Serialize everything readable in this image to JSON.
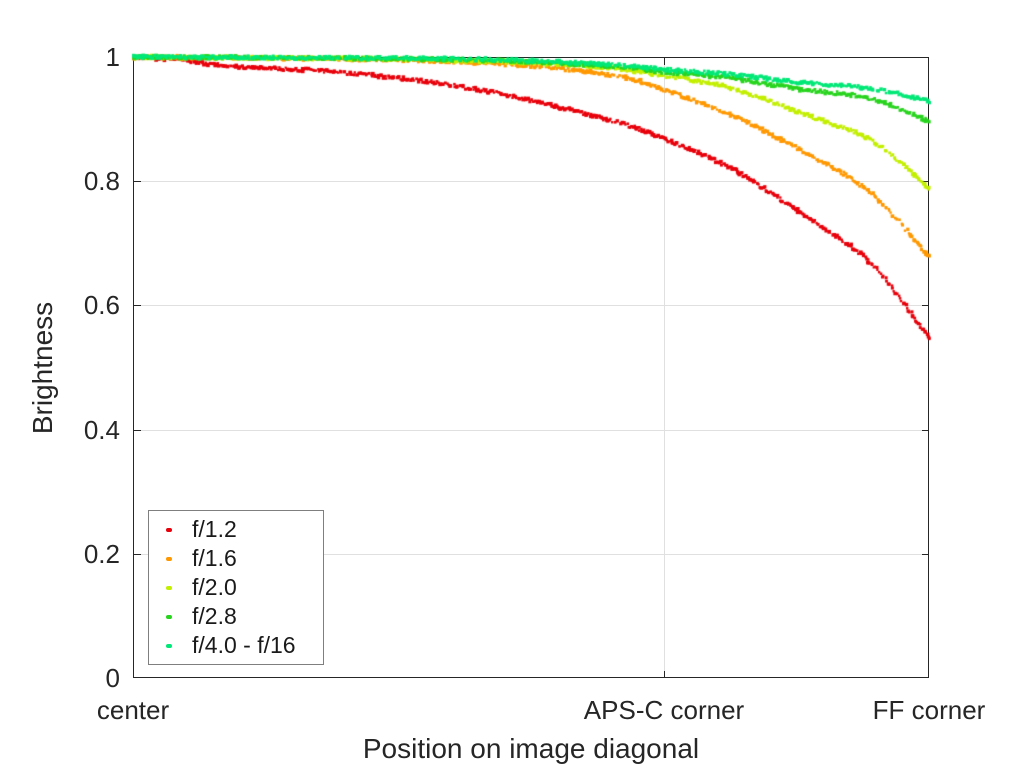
{
  "chart_data": {
    "type": "scatter",
    "title": "",
    "xlabel": "Position on image diagonal",
    "ylabel": "Brightness",
    "xlim": [
      0,
      1
    ],
    "ylim": [
      0,
      1
    ],
    "grid": {
      "on": true,
      "color": "#e0e0e0",
      "horizontal_values": [
        0.2,
        0.4,
        0.6,
        0.8
      ],
      "vertical_values": [
        0.667
      ]
    },
    "axis_color": "#262626",
    "x_ticks": [
      {
        "pos": 0,
        "label": "center"
      },
      {
        "pos": 0.667,
        "label": "APS-C corner"
      },
      {
        "pos": 1,
        "label": "FF corner"
      }
    ],
    "y_ticks": [
      {
        "pos": 0,
        "label": "0"
      },
      {
        "pos": 0.2,
        "label": "0.2"
      },
      {
        "pos": 0.4,
        "label": "0.4"
      },
      {
        "pos": 0.6,
        "label": "0.6"
      },
      {
        "pos": 0.8,
        "label": "0.8"
      },
      {
        "pos": 1,
        "label": "1"
      }
    ],
    "legend": {
      "position": "bottom-left",
      "border_color": "#7f7f7f",
      "background": "#ffffff"
    },
    "series": [
      {
        "name": "f/1.2",
        "color": "#e8000b",
        "points": [
          [
            0,
            1.0
          ],
          [
            0.06,
            0.995
          ],
          [
            0.126,
            0.985
          ],
          [
            0.273,
            0.974
          ],
          [
            0.436,
            0.947
          ],
          [
            0.6,
            0.898
          ],
          [
            0.667,
            0.868
          ],
          [
            0.751,
            0.821
          ],
          [
            0.839,
            0.749
          ],
          [
            0.927,
            0.668
          ],
          [
            1,
            0.547
          ]
        ]
      },
      {
        "name": "f/1.6",
        "color": "#ff9800",
        "points": [
          [
            0,
            1.0
          ],
          [
            0.2,
            0.998
          ],
          [
            0.436,
            0.991
          ],
          [
            0.6,
            0.971
          ],
          [
            0.667,
            0.947
          ],
          [
            0.751,
            0.907
          ],
          [
            0.839,
            0.85
          ],
          [
            0.927,
            0.781
          ],
          [
            1,
            0.678
          ]
        ]
      },
      {
        "name": "f/2.0",
        "color": "#c3ef00",
        "points": [
          [
            0,
            1.0
          ],
          [
            0.3,
            0.997
          ],
          [
            0.5,
            0.991
          ],
          [
            0.6,
            0.982
          ],
          [
            0.667,
            0.97
          ],
          [
            0.751,
            0.95
          ],
          [
            0.839,
            0.91
          ],
          [
            0.927,
            0.866
          ],
          [
            1,
            0.789
          ]
        ]
      },
      {
        "name": "f/2.8",
        "color": "#28d41e",
        "points": [
          [
            0,
            1.0
          ],
          [
            0.4,
            0.996
          ],
          [
            0.6,
            0.985
          ],
          [
            0.667,
            0.976
          ],
          [
            0.751,
            0.966
          ],
          [
            0.839,
            0.948
          ],
          [
            0.927,
            0.933
          ],
          [
            1,
            0.897
          ]
        ]
      },
      {
        "name": "f/4.0 - f/16",
        "color": "#00e877",
        "points": [
          [
            0,
            1.0
          ],
          [
            0.4,
            0.997
          ],
          [
            0.6,
            0.988
          ],
          [
            0.667,
            0.98
          ],
          [
            0.751,
            0.972
          ],
          [
            0.839,
            0.959
          ],
          [
            0.927,
            0.949
          ],
          [
            1,
            0.929
          ]
        ]
      }
    ]
  }
}
